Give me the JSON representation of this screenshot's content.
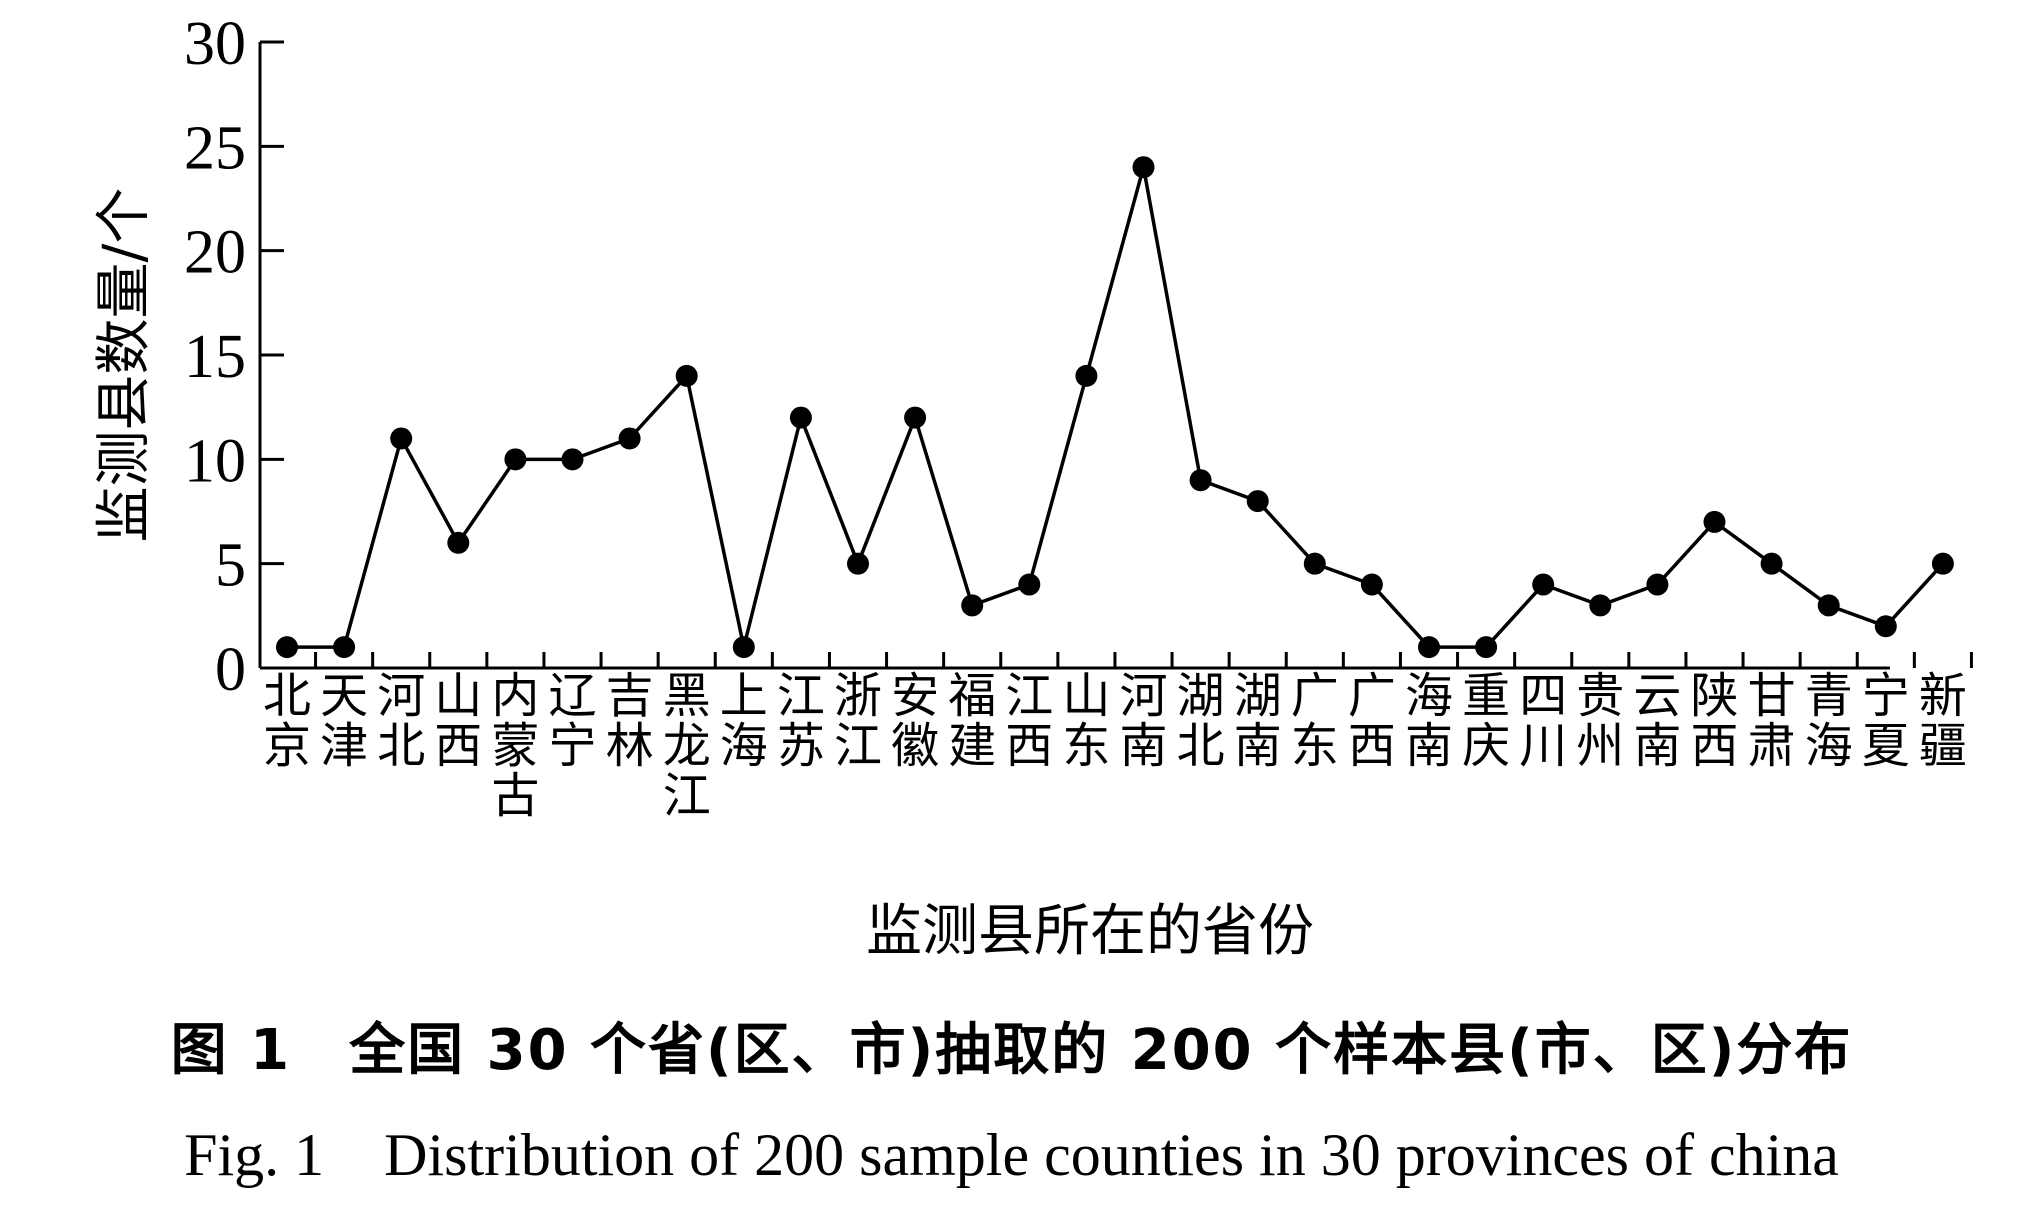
{
  "chart_data": {
    "type": "line",
    "ylabel": "监测县数量/个",
    "xlabel": "监测县所在的省份",
    "ylim": [
      0,
      30
    ],
    "yticks": [
      0,
      5,
      10,
      15,
      20,
      25,
      30
    ],
    "grid": false,
    "categories": [
      "北京",
      "天津",
      "河北",
      "山西",
      "内蒙古",
      "辽宁",
      "吉林",
      "黑龙江",
      "上海",
      "江苏",
      "浙江",
      "安徽",
      "福建",
      "江西",
      "山东",
      "河南",
      "湖北",
      "湖南",
      "广东",
      "广西",
      "海南",
      "重庆",
      "四川",
      "贵州",
      "云南",
      "陕西",
      "甘肃",
      "青海",
      "宁夏",
      "新疆"
    ],
    "series": [
      {
        "values": [
          1,
          1,
          11,
          6,
          10,
          10,
          11,
          14,
          1,
          12,
          5,
          12,
          3,
          4,
          14,
          24,
          9,
          8,
          5,
          4,
          1,
          1,
          4,
          3,
          4,
          7,
          5,
          3,
          2,
          5
        ]
      }
    ],
    "line_color": "#000000"
  },
  "caption": {
    "cn": "图 1　全国 30 个省(区、市)抽取的 200 个样本县(市、区)分布",
    "en": "Fig. 1　Distribution of 200 sample counties in 30 provinces of china"
  }
}
